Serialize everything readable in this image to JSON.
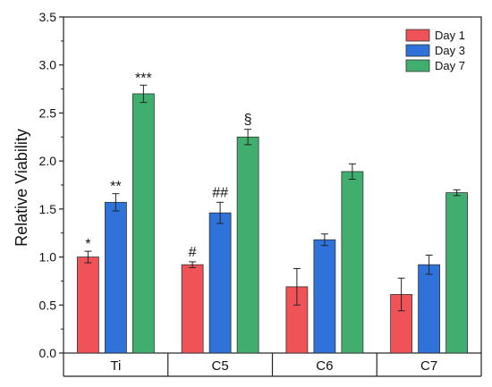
{
  "chart_data": {
    "type": "bar",
    "title": "",
    "xlabel": "",
    "ylabel": "Relative Viability",
    "ylim": [
      0.0,
      3.5
    ],
    "yticks": [
      "0.0",
      "0.5",
      "1.0",
      "1.5",
      "2.0",
      "2.5",
      "3.0",
      "3.5"
    ],
    "grid": false,
    "legend_position": "top-right",
    "categories": [
      "Ti",
      "C5",
      "C6",
      "C7"
    ],
    "series": [
      {
        "name": "Day 1",
        "color": "#ef5257",
        "values": [
          1.0,
          0.92,
          0.69,
          0.61
        ],
        "errors": [
          0.06,
          0.03,
          0.19,
          0.17
        ]
      },
      {
        "name": "Day 3",
        "color": "#2f72d9",
        "values": [
          1.57,
          1.46,
          1.18,
          0.92
        ],
        "errors": [
          0.09,
          0.11,
          0.06,
          0.1
        ]
      },
      {
        "name": "Day 7",
        "color": "#3fae6e",
        "values": [
          2.7,
          2.25,
          1.89,
          1.67
        ],
        "errors": [
          0.09,
          0.08,
          0.08,
          0.03
        ]
      }
    ],
    "annotations": [
      {
        "category": "Ti",
        "series": "Day 1",
        "text": "*"
      },
      {
        "category": "Ti",
        "series": "Day 3",
        "text": "**"
      },
      {
        "category": "Ti",
        "series": "Day 7",
        "text": "***"
      },
      {
        "category": "C5",
        "series": "Day 1",
        "text": "#"
      },
      {
        "category": "C5",
        "series": "Day 3",
        "text": "##"
      },
      {
        "category": "C5",
        "series": "Day 7",
        "text": "§"
      }
    ]
  }
}
